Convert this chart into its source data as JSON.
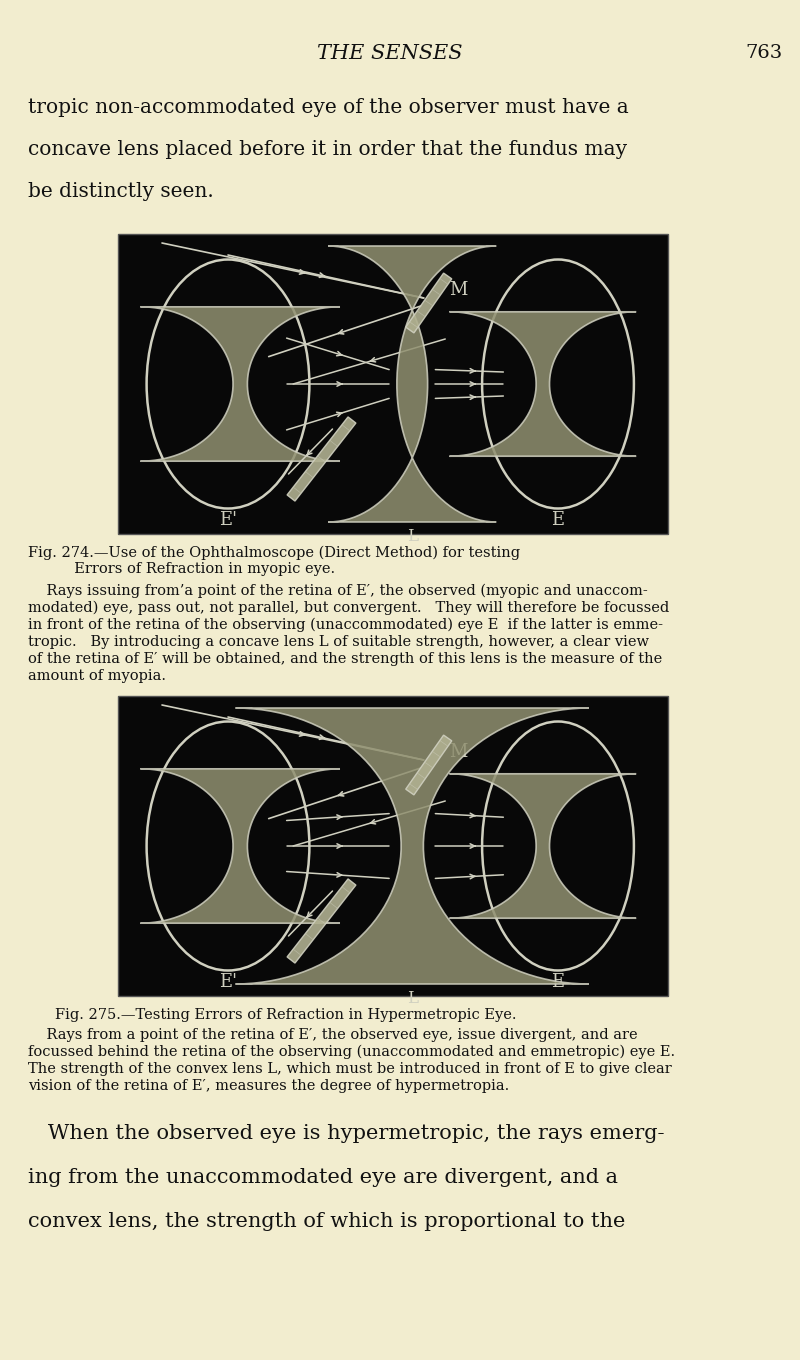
{
  "bg_color": "#f2edcf",
  "page_header": "THE SENSES",
  "page_number": "763",
  "intro_text_lines": [
    "tropic non-accommodated eye of the observer must have a",
    "concave lens placed before it in order that the fundus may",
    "be distinctly seen."
  ],
  "fig1_caption_line1": "Fig. 274.—Use of the Ophthalmoscope (Direct Method) for testing",
  "fig1_caption_line2": "          Errors of Refraction in myopic eye.",
  "fig1_body_lines": [
    "    Rays issuing from’a point of the retina of E′, the observed (myopic and unaccom-",
    "modated) eye, pass out, not parallel, but convergent.   They will therefore be focussed",
    "in front of the retina of the observing (unaccommodated) eye E  if the latter is emme-",
    "tropic.   By introducing a concave lens L of suitable strength, however, a clear view",
    "of the retina of E′ will be obtained, and the strength of this lens is the measure of the",
    "amount of myopia."
  ],
  "fig2_caption": "Fig. 275.—Testing Errors of Refraction in Hypermetropic Eye.",
  "fig2_body_lines": [
    "    Rays from a point of the retina of E′, the observed eye, issue divergent, and are",
    "focussed behind the retina of the observing (unaccommodated and emmetropic) eye E.",
    "The strength of the convex lens L, which must be introduced in front of E to give clear",
    "vision of the retina of E′, measures the degree of hypermetropia."
  ],
  "closing_lines": [
    "   When the observed eye is hypermetropic, the rays emerg-",
    "ing from the unaccommodated eye are divergent, and a",
    "convex lens, the strength of which is proportional to the"
  ],
  "diagram_bg": "#080808",
  "wire_color": "#d0d0c0",
  "mirror_color": "#b0b090",
  "lens_fill": "#909070",
  "text_color": "#111111"
}
